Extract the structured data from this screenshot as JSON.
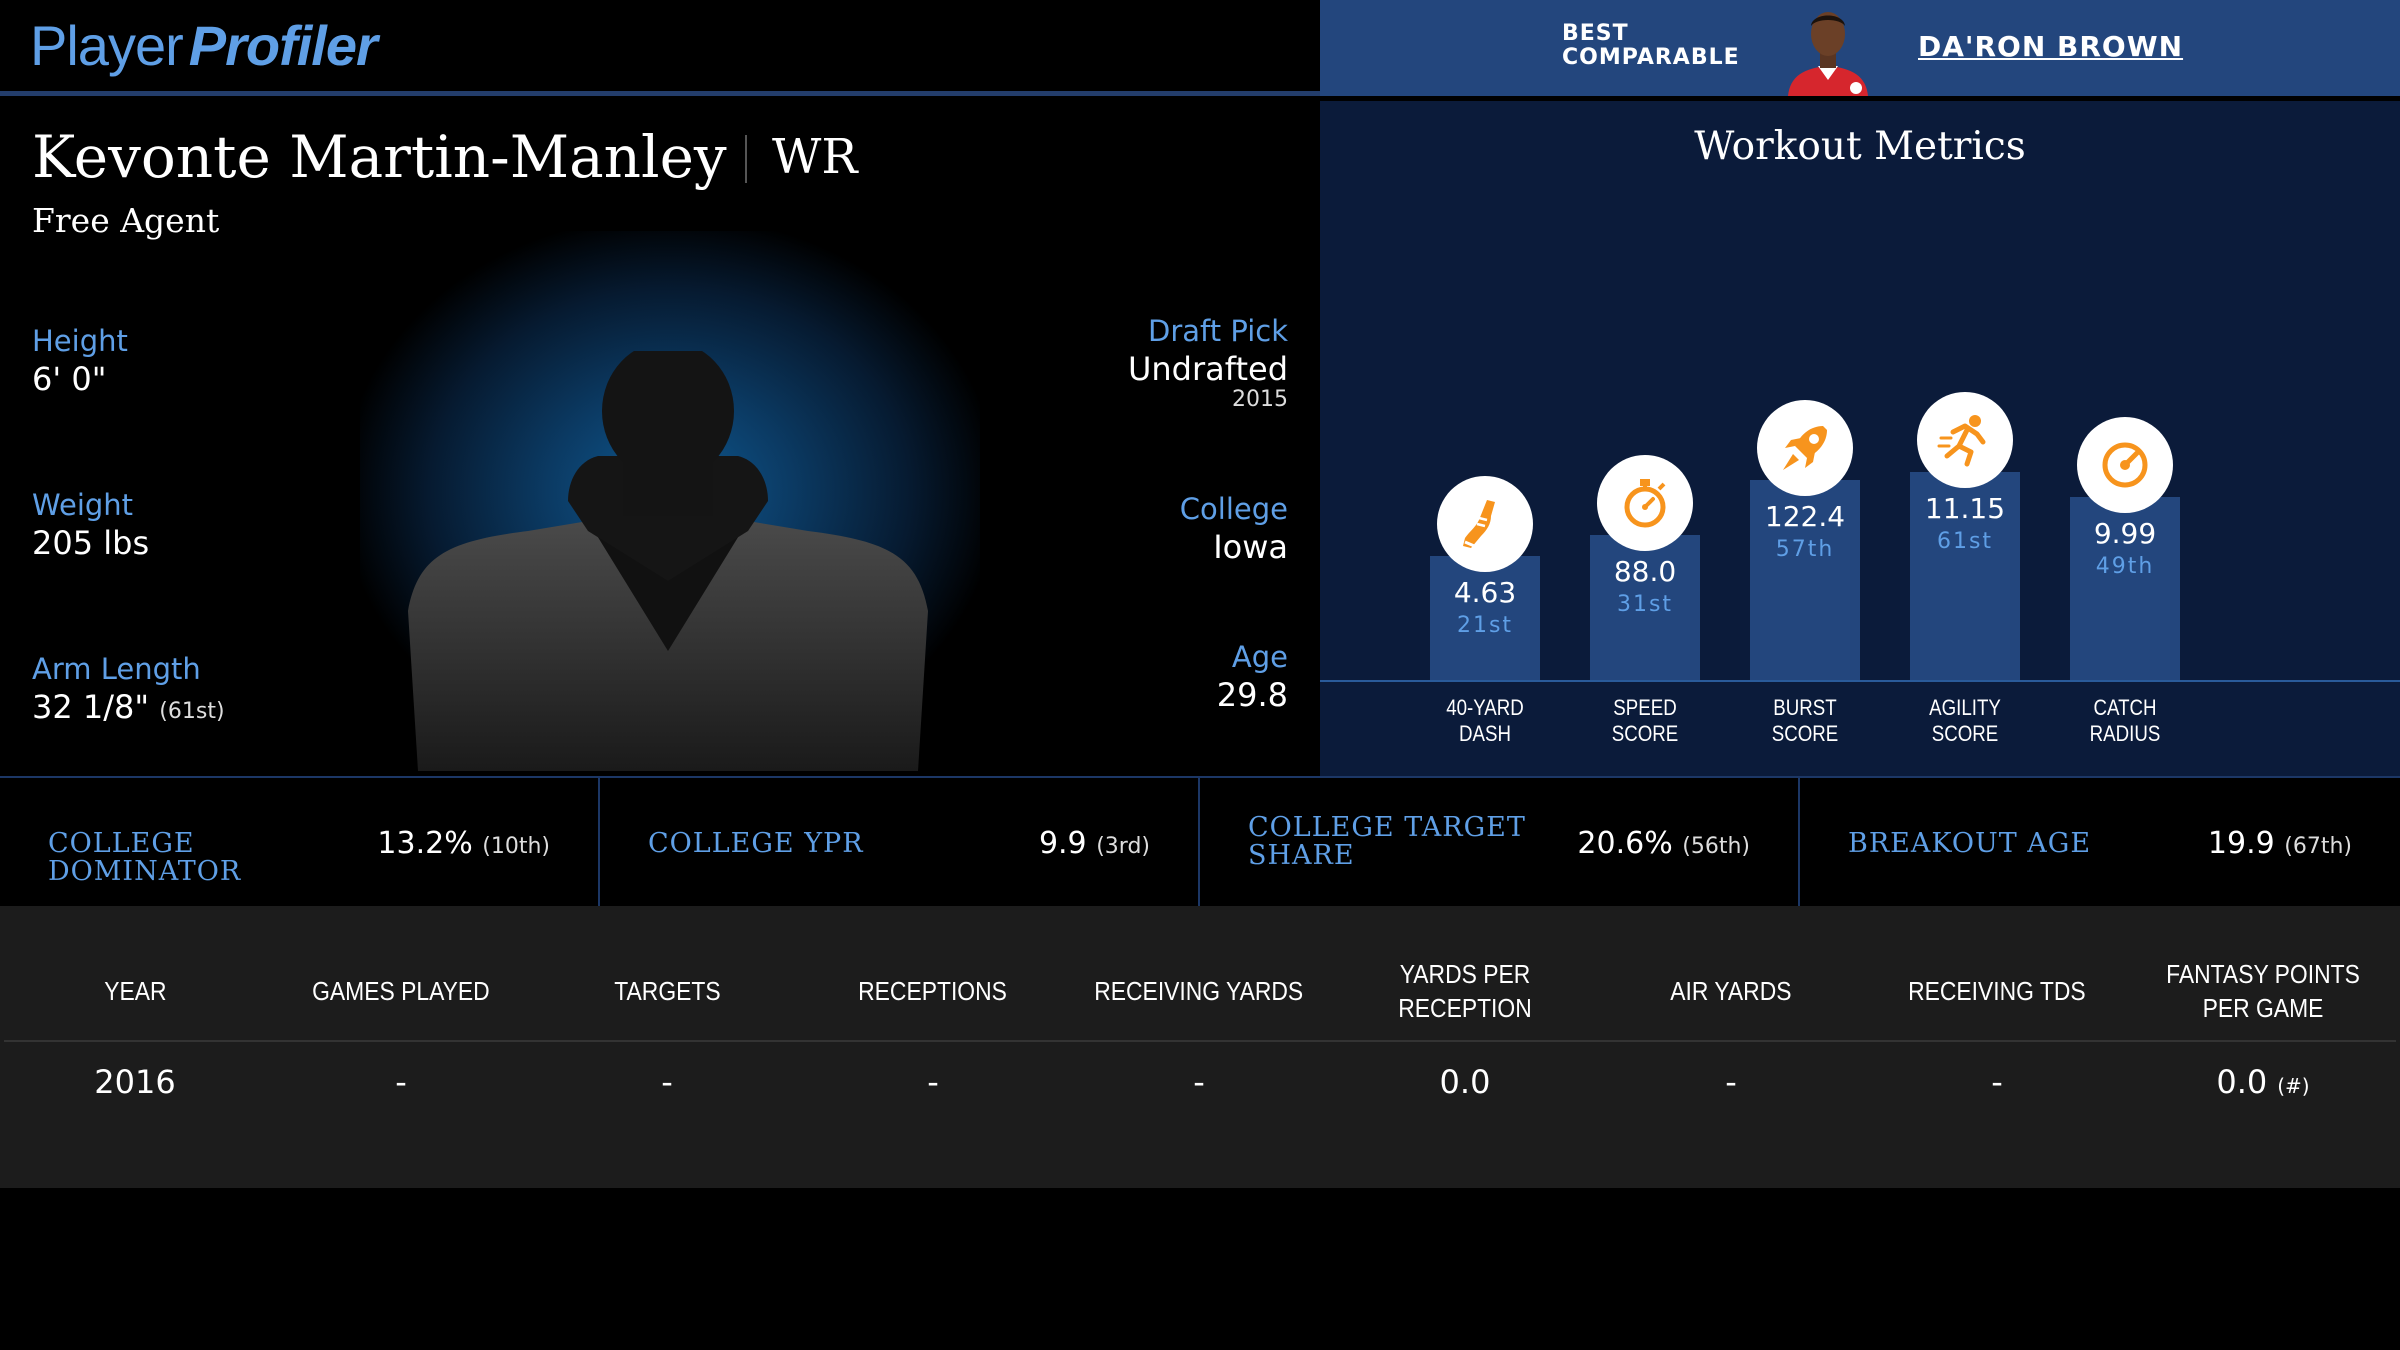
{
  "logo": {
    "part1": "Player",
    "part2": "Profiler"
  },
  "best_comparable": {
    "label_line1": "BEST",
    "label_line2": "COMPARABLE",
    "name": "DA'RON BROWN"
  },
  "player": {
    "name": "Kevonte Martin-Manley",
    "position": "WR",
    "team": "Free Agent"
  },
  "bio": {
    "height": {
      "label": "Height",
      "value": "6' 0\""
    },
    "weight": {
      "label": "Weight",
      "value": "205 lbs"
    },
    "arm_length": {
      "label": "Arm Length",
      "value": "32 1/8\"",
      "rank": "(61st)"
    },
    "draft_pick": {
      "label": "Draft Pick",
      "value": "Undrafted",
      "year": "2015"
    },
    "college": {
      "label": "College",
      "value": "Iowa"
    },
    "age": {
      "label": "Age",
      "value": "29.8"
    }
  },
  "workout": {
    "title": "Workout Metrics",
    "metrics": [
      {
        "label_line1": "40-YARD",
        "label_line2": "DASH",
        "value": "4.63",
        "rank": "21st",
        "percentile": 21,
        "icon": "shoe-icon"
      },
      {
        "label_line1": "SPEED",
        "label_line2": "SCORE",
        "value": "88.0",
        "rank": "31st",
        "percentile": 31,
        "icon": "stopwatch-icon"
      },
      {
        "label_line1": "BURST",
        "label_line2": "SCORE",
        "value": "122.4",
        "rank": "57th",
        "percentile": 57,
        "icon": "rocket-icon"
      },
      {
        "label_line1": "AGILITY",
        "label_line2": "SCORE",
        "value": "11.15",
        "rank": "61st",
        "percentile": 61,
        "icon": "runner-icon"
      },
      {
        "label_line1": "CATCH",
        "label_line2": "RADIUS",
        "value": "9.99",
        "rank": "49th",
        "percentile": 49,
        "icon": "target-icon"
      }
    ]
  },
  "college_stats": [
    {
      "label": "College Dominator",
      "value": "13.2%",
      "rank": "(10th)"
    },
    {
      "label": "College YPR",
      "value": "9.9",
      "rank": "(3rd)"
    },
    {
      "label": "College Target Share",
      "value": "20.6%",
      "rank": "(56th)"
    },
    {
      "label": "Breakout Age",
      "value": "19.9",
      "rank": "(67th)"
    }
  ],
  "table": {
    "headers": [
      "YEAR",
      "GAMES PLAYED",
      "TARGETS",
      "RECEPTIONS",
      "RECEIVING YARDS",
      "YARDS PER RECEPTION",
      "AIR YARDS",
      "RECEIVING TDS",
      "FANTASY POINTS PER GAME"
    ],
    "row": [
      "2016",
      "-",
      "-",
      "-",
      "-",
      "0.0",
      "-",
      "-",
      "0.0"
    ],
    "fp_note": "(#)"
  },
  "colors": {
    "accent_blue": "#5f9fe6",
    "bar_blue": "#23467d",
    "icon_orange": "#f7941d"
  }
}
